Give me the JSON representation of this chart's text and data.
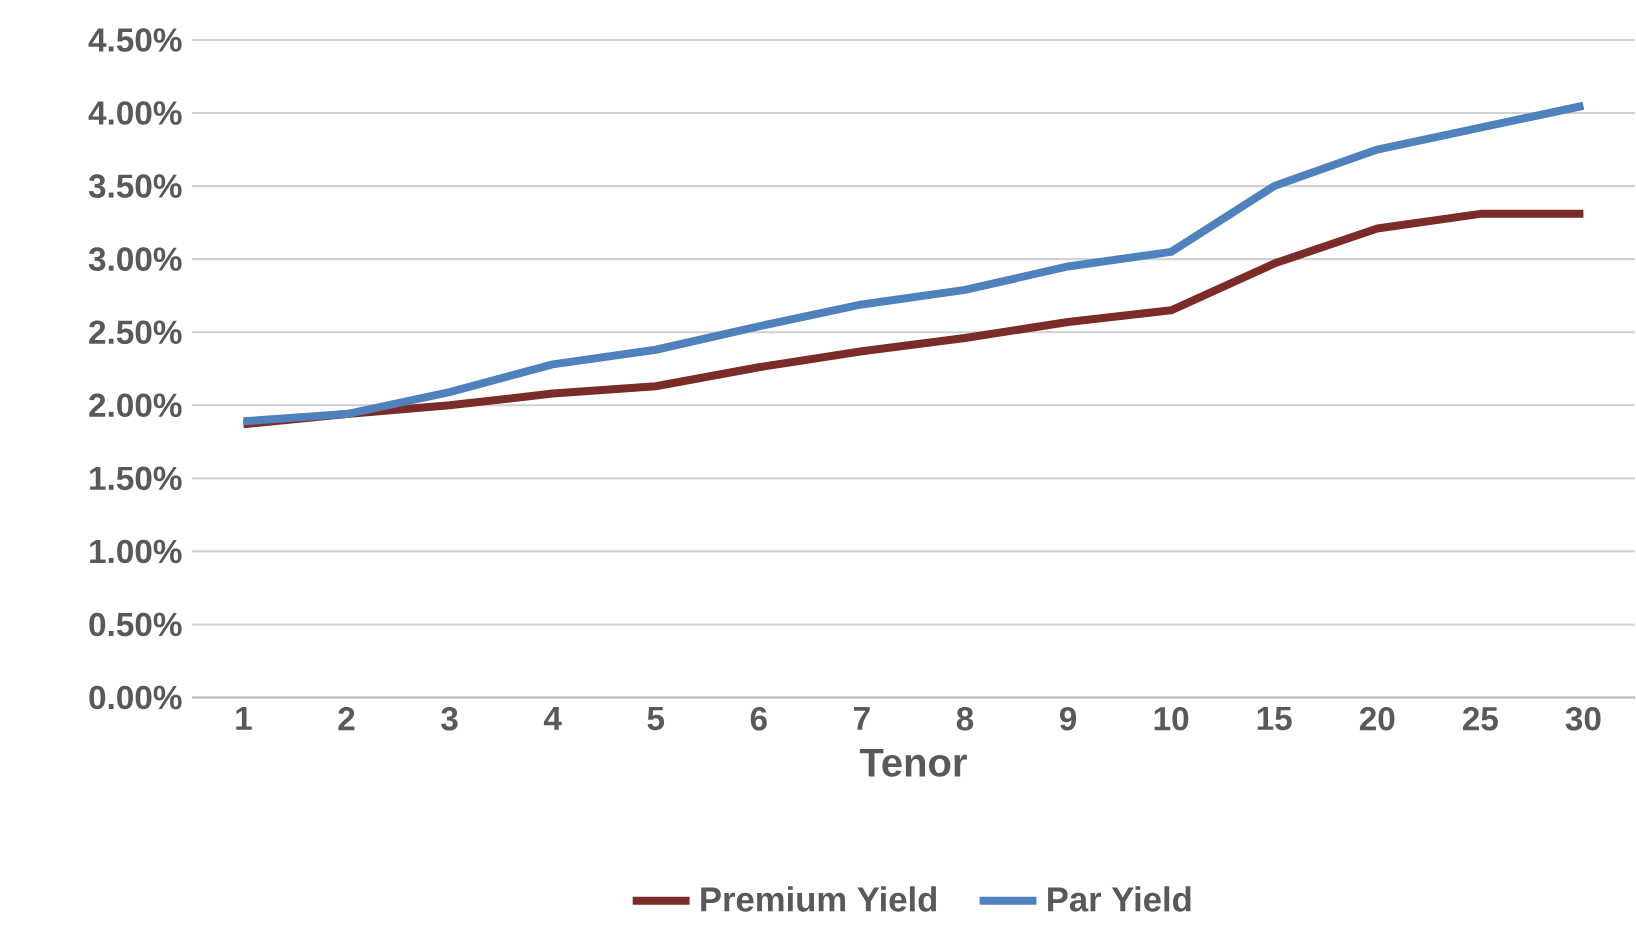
{
  "chart_data": {
    "type": "line",
    "xlabel": "Tenor",
    "categories": [
      "1",
      "2",
      "3",
      "4",
      "5",
      "6",
      "7",
      "8",
      "9",
      "10",
      "15",
      "20",
      "25",
      "30"
    ],
    "series": [
      {
        "name": "Premium Yield",
        "color": "#7b2c28",
        "values": [
          1.87,
          1.94,
          2.0,
          2.08,
          2.13,
          2.26,
          2.37,
          2.46,
          2.57,
          2.65,
          2.97,
          3.21,
          3.31,
          3.31
        ]
      },
      {
        "name": "Par Yield",
        "color": "#4f81bd",
        "values": [
          1.89,
          1.94,
          2.09,
          2.28,
          2.38,
          2.54,
          2.69,
          2.79,
          2.95,
          3.05,
          3.5,
          3.75,
          3.9,
          4.05
        ]
      }
    ],
    "ylim": [
      0,
      4.5
    ],
    "yticks": [
      {
        "value": 0,
        "label": "0.00%"
      },
      {
        "value": 0.5,
        "label": "0.50%"
      },
      {
        "value": 1,
        "label": "1.00%"
      },
      {
        "value": 1.5,
        "label": "1.50%"
      },
      {
        "value": 2,
        "label": "2.00%"
      },
      {
        "value": 2.5,
        "label": "2.50%"
      },
      {
        "value": 3,
        "label": "3.00%"
      },
      {
        "value": 3.5,
        "label": "3.50%"
      },
      {
        "value": 4,
        "label": "4.00%"
      },
      {
        "value": 4.5,
        "label": "4.50%"
      }
    ],
    "grid": "y",
    "legend": "bottom",
    "marker": "none",
    "line_style": "solid"
  }
}
